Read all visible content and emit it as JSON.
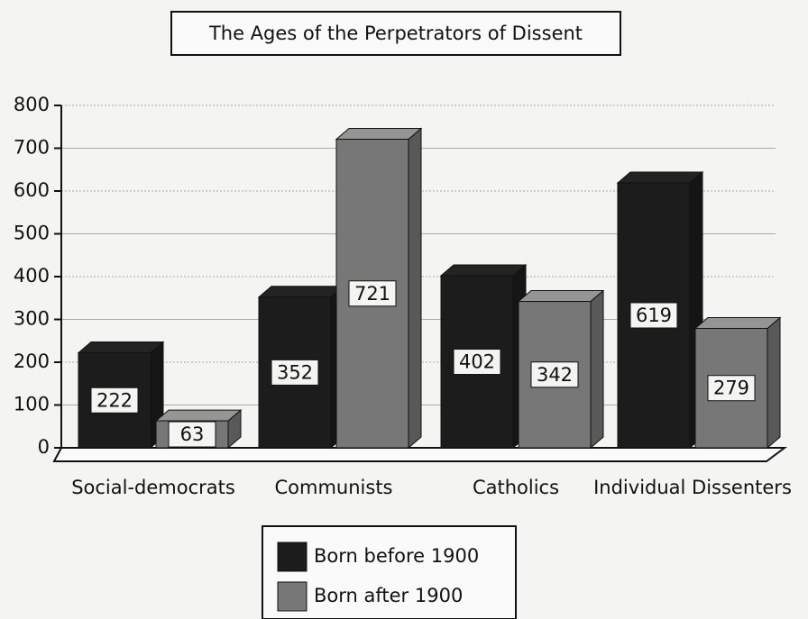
{
  "chart_data": {
    "type": "bar",
    "title": "The Ages of the Perpetrators of Dissent",
    "categories": [
      "Social-democrats",
      "Communists",
      "Catholics",
      "Individual Dissenters"
    ],
    "series": [
      {
        "name": "Born before 1900",
        "color": "#1c1c1c",
        "values": [
          222,
          352,
          402,
          619
        ]
      },
      {
        "name": "Born after 1900",
        "color": "#777777",
        "values": [
          63,
          721,
          342,
          279
        ]
      }
    ],
    "ylim": [
      0,
      800
    ],
    "yticks": [
      0,
      100,
      200,
      300,
      400,
      500,
      600,
      700,
      800
    ],
    "grid": true,
    "legend": "bottom"
  }
}
